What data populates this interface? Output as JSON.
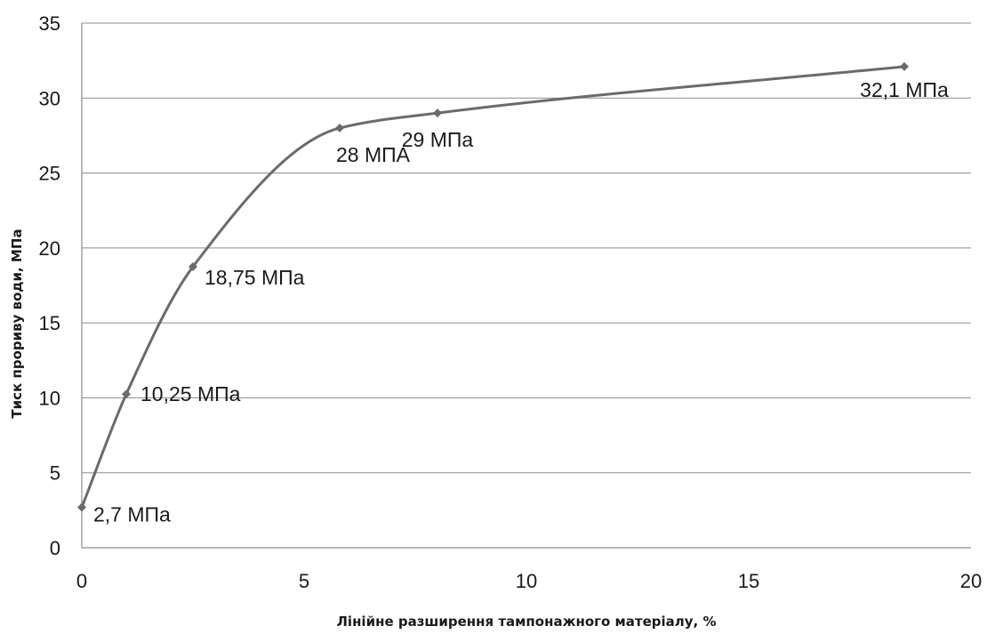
{
  "chart_data": {
    "type": "line",
    "title": "",
    "xlabel": "Лінійне  разширення  тампонажного  матеріалу,  %",
    "ylabel": "Тиск прориву води, МПа",
    "xlim": [
      0,
      20
    ],
    "ylim": [
      0,
      35
    ],
    "xticks": [
      0,
      5,
      10,
      15,
      20
    ],
    "yticks": [
      0,
      5,
      10,
      15,
      20,
      25,
      30,
      35
    ],
    "grid": {
      "horizontal": true,
      "vertical": false
    },
    "legend": "none",
    "line_style": "smoothed",
    "series": [
      {
        "color": "#6b6b6b",
        "marker": "diamond",
        "points": [
          {
            "x": 0,
            "y": 2.7,
            "label": "2,7 МПа"
          },
          {
            "x": 1,
            "y": 10.25,
            "label": "10,25 МПа"
          },
          {
            "x": 2.5,
            "y": 18.75,
            "label": "18,75 МПа"
          },
          {
            "x": 5.8,
            "y": 28,
            "label": "28 МПА"
          },
          {
            "x": 8,
            "y": 29,
            "label": "29 МПа"
          },
          {
            "x": 18.5,
            "y": 32.1,
            "label": "32,1 МПа"
          }
        ]
      }
    ]
  }
}
